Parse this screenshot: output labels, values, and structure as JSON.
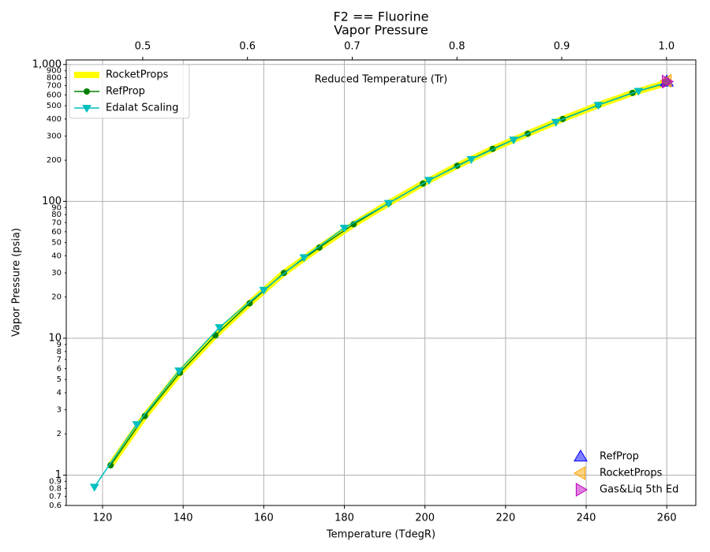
{
  "chart_data": {
    "type": "line",
    "title": "F2 == Fluorine",
    "subtitle": "Vapor Pressure",
    "xlabel": "Temperature (TdegR)",
    "ylabel": "Vapor Pressure (psia)",
    "x2label": "Reduced Temperature (Tr)",
    "yscale": "log",
    "grid": true,
    "xlim": [
      111,
      267.2
    ],
    "xticks": [
      120,
      140,
      160,
      180,
      200,
      220,
      240,
      260
    ],
    "x2lim": [
      0.427,
      1.028
    ],
    "x2ticks": [
      0.5,
      0.6,
      0.7,
      0.8,
      0.9,
      {
        "value": 1,
        "label": "1.0"
      }
    ],
    "ylim": [
      0.6,
      1080
    ],
    "yticks": [
      1,
      10,
      100,
      {
        "value": 1000,
        "label": "1,000"
      }
    ],
    "yminor_ticks": [
      0.6,
      0.7,
      0.8,
      0.9,
      2,
      3,
      4,
      5,
      6,
      7,
      8,
      9,
      20,
      30,
      40,
      50,
      60,
      70,
      80,
      90,
      200,
      300,
      400,
      500,
      600,
      700,
      800,
      900
    ],
    "legend": "upper left",
    "series": [
      {
        "name": "RocketProps",
        "color": "#ffff00",
        "linewidth": 8,
        "marker": "none",
        "x": [
          122,
          130.5,
          139.2,
          148,
          156.5,
          165,
          173.8,
          182.3,
          191,
          199.5,
          208,
          216.8,
          225.5,
          234.2,
          243,
          251.5,
          260
        ],
        "values": [
          1.18,
          2.7,
          5.6,
          10.5,
          18,
          30,
          46,
          68,
          97,
          135,
          182,
          242,
          312,
          400,
          505,
          620,
          735
        ]
      },
      {
        "name": "RefProp",
        "color": "#008000",
        "linewidth": 1.5,
        "marker": "circle",
        "x": [
          122,
          130.5,
          139.2,
          148,
          156.5,
          165,
          173.8,
          182.3,
          191,
          199.5,
          208,
          216.8,
          225.5,
          234.2,
          243,
          251.5,
          260
        ],
        "values": [
          1.18,
          2.7,
          5.6,
          10.5,
          18,
          30,
          46,
          68,
          97,
          135,
          182,
          242,
          312,
          400,
          505,
          620,
          735
        ]
      },
      {
        "name": "Edalat Scaling",
        "color": "#00bfbf",
        "linewidth": 1.5,
        "marker": "triangle-down",
        "x": [
          118,
          128.5,
          139,
          149,
          160,
          170,
          180,
          191,
          201,
          211.5,
          222,
          232.5,
          243,
          253,
          260
        ],
        "values": [
          0.82,
          2.35,
          5.8,
          12,
          22.5,
          39,
          64,
          97,
          143,
          203,
          282,
          380,
          505,
          640,
          740
        ]
      }
    ],
    "points_legend": "lower right",
    "points": [
      {
        "name": "RefProp",
        "color": "#0000ff",
        "alpha": 0.5,
        "marker": "triangle-up",
        "x": 260,
        "value": 750
      },
      {
        "name": "RocketProps",
        "color": "#ffa500",
        "alpha": 0.5,
        "marker": "triangle-left",
        "x": 260,
        "value": 760
      },
      {
        "name": "Gas&Liq 5th Ed",
        "color": "#bf00bf",
        "alpha": 0.5,
        "marker": "triangle-right",
        "x": 260,
        "value": 750
      }
    ]
  }
}
